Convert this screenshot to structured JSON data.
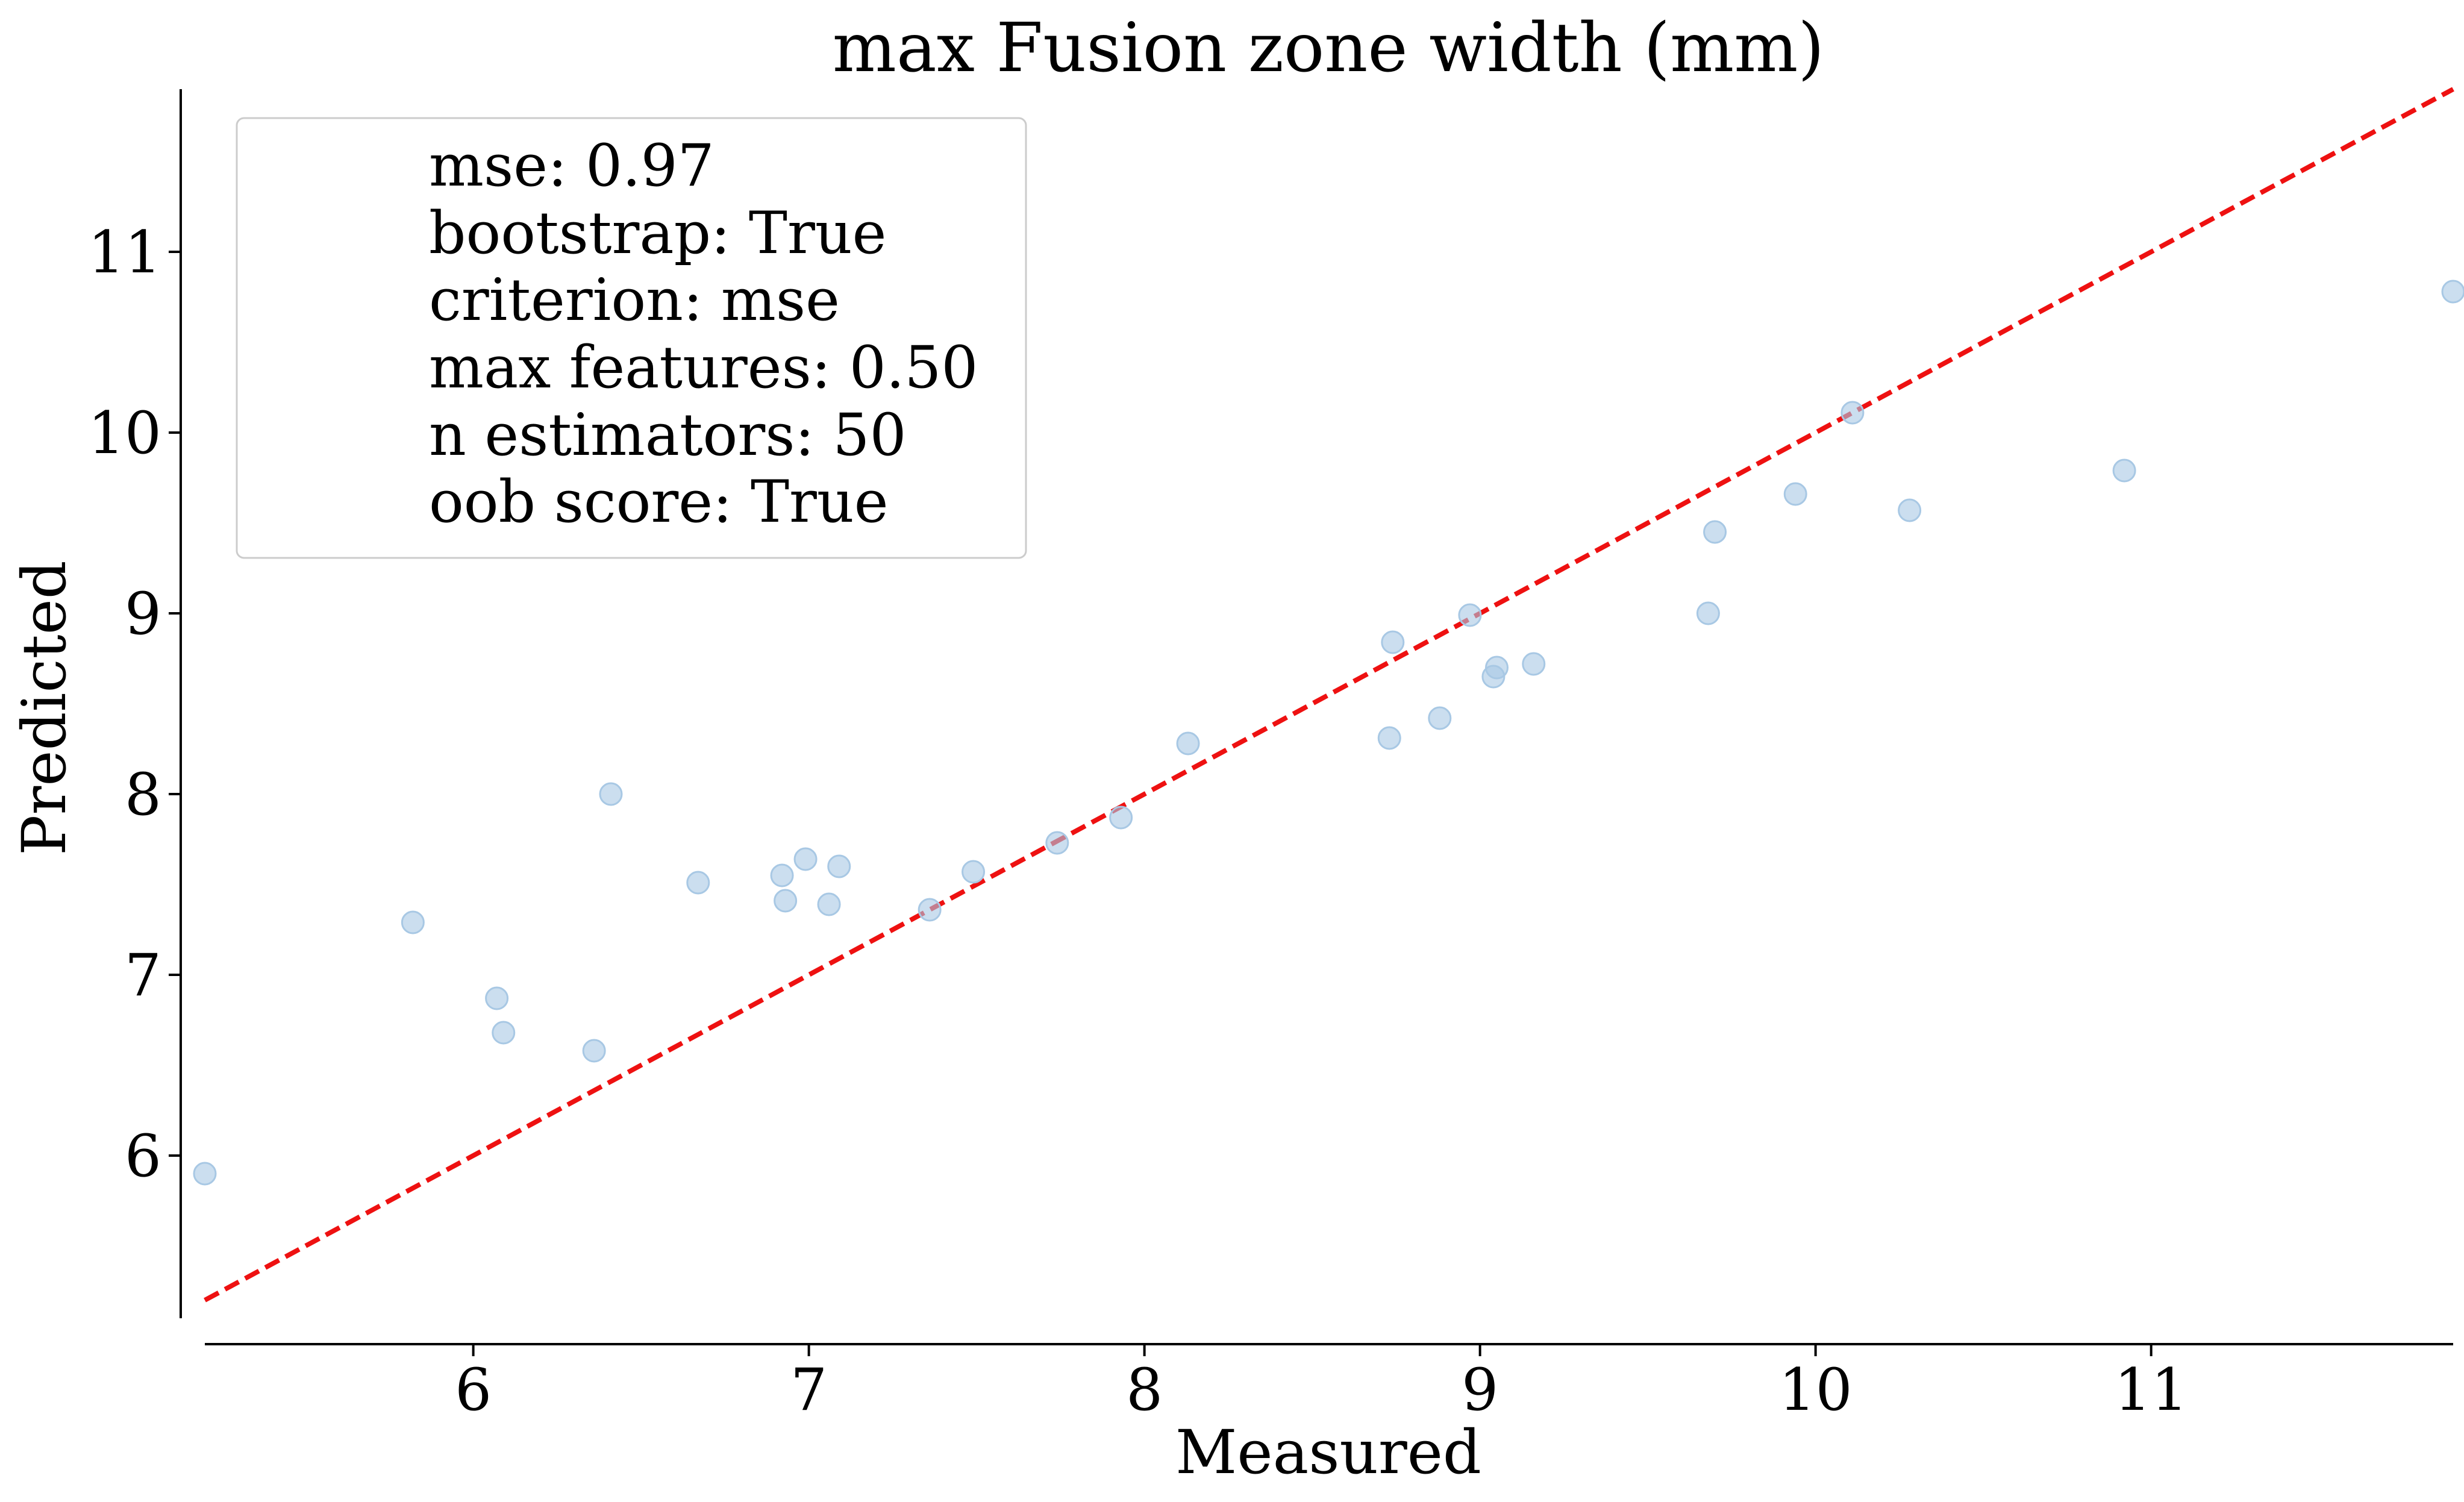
{
  "chart_data": {
    "type": "scatter",
    "title": "max Fusion zone width (mm)",
    "xlabel": "Measured",
    "ylabel": "Predicted",
    "xlim": [
      5.2,
      11.9
    ],
    "ylim": [
      5.1,
      11.9
    ],
    "xticks": [
      6,
      7,
      8,
      9,
      10,
      11
    ],
    "yticks": [
      6,
      7,
      8,
      9,
      10,
      11
    ],
    "grid": false,
    "legend_placement": "top-left",
    "point_color": "#a8c8e4",
    "line_color": "#ee1111",
    "reference_line": {
      "style": "dashed",
      "slope": 1,
      "intercept": 0
    },
    "annotation_lines": [
      "mse: 0.97",
      "bootstrap: True",
      "criterion: mse",
      "max features: 0.50",
      "n estimators: 50",
      "oob score: True"
    ],
    "series": [
      {
        "points": [
          {
            "x": 5.2,
            "y": 5.9
          },
          {
            "x": 5.82,
            "y": 7.29
          },
          {
            "x": 6.07,
            "y": 6.87
          },
          {
            "x": 6.09,
            "y": 6.68
          },
          {
            "x": 6.36,
            "y": 6.58
          },
          {
            "x": 6.41,
            "y": 8.0
          },
          {
            "x": 6.67,
            "y": 7.51
          },
          {
            "x": 6.92,
            "y": 7.55
          },
          {
            "x": 6.93,
            "y": 7.41
          },
          {
            "x": 6.99,
            "y": 7.64
          },
          {
            "x": 7.06,
            "y": 7.39
          },
          {
            "x": 7.09,
            "y": 7.6
          },
          {
            "x": 7.36,
            "y": 7.36
          },
          {
            "x": 7.49,
            "y": 7.57
          },
          {
            "x": 7.74,
            "y": 7.73
          },
          {
            "x": 7.93,
            "y": 7.87
          },
          {
            "x": 8.13,
            "y": 8.28
          },
          {
            "x": 8.73,
            "y": 8.31
          },
          {
            "x": 8.74,
            "y": 8.84
          },
          {
            "x": 8.88,
            "y": 8.42
          },
          {
            "x": 8.97,
            "y": 8.99
          },
          {
            "x": 9.04,
            "y": 8.65
          },
          {
            "x": 9.05,
            "y": 8.7
          },
          {
            "x": 9.16,
            "y": 8.72
          },
          {
            "x": 9.68,
            "y": 9.0
          },
          {
            "x": 9.7,
            "y": 9.45
          },
          {
            "x": 9.94,
            "y": 9.66
          },
          {
            "x": 10.11,
            "y": 10.11
          },
          {
            "x": 10.28,
            "y": 9.57
          },
          {
            "x": 10.92,
            "y": 9.79
          },
          {
            "x": 11.9,
            "y": 10.78
          }
        ]
      }
    ]
  }
}
